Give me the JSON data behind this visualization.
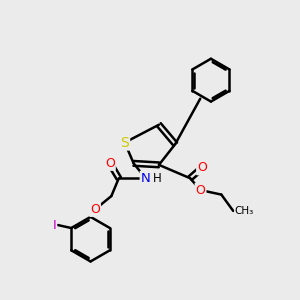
{
  "background_color": "#ebebeb",
  "bond_color": "#000000",
  "bond_width": 1.8,
  "atom_colors": {
    "S": "#cccc00",
    "N": "#0000ee",
    "O": "#ff0000",
    "I": "#cc00cc",
    "H": "#000000",
    "C": "#000000"
  },
  "font_size": 8.5,
  "fig_size": [
    3.0,
    3.0
  ],
  "dpi": 100
}
